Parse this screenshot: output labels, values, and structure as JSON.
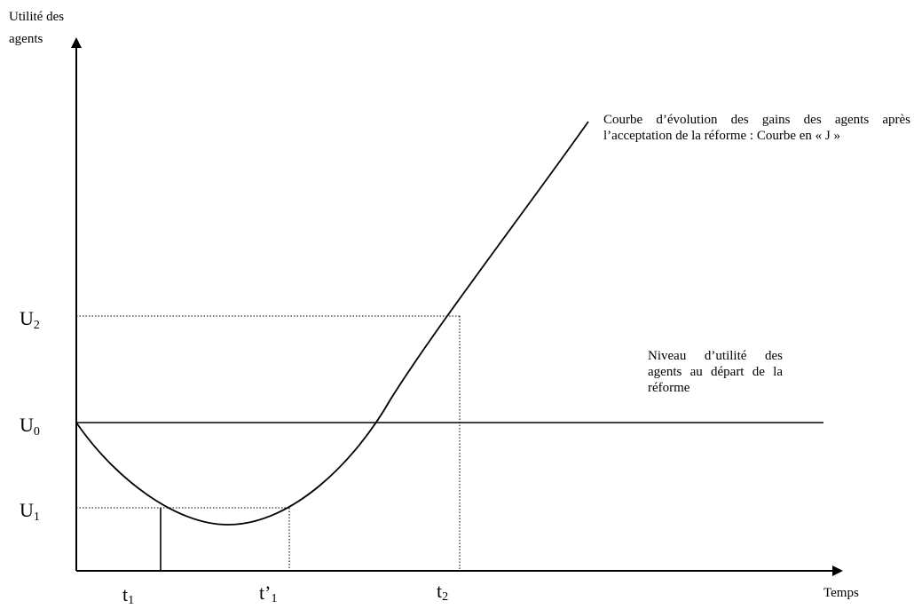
{
  "axes": {
    "y_title_line1": "Utilité des",
    "y_title_line2": "agents",
    "x_title": "Temps"
  },
  "y_ticks": [
    {
      "main": "U",
      "sub": "2"
    },
    {
      "main": "U",
      "sub": "0"
    },
    {
      "main": "U",
      "sub": "1"
    }
  ],
  "x_ticks": [
    {
      "main": "t",
      "sub": "1"
    },
    {
      "main": "t’",
      "sub": "1"
    },
    {
      "main": "t",
      "sub": "2"
    }
  ],
  "annotations": {
    "curve_label": "Courbe d’évolution des gains des agents après l’acceptation de la réforme : Courbe en « J »",
    "level_label": "Niveau d’utilité des agents au départ de la réforme"
  }
}
